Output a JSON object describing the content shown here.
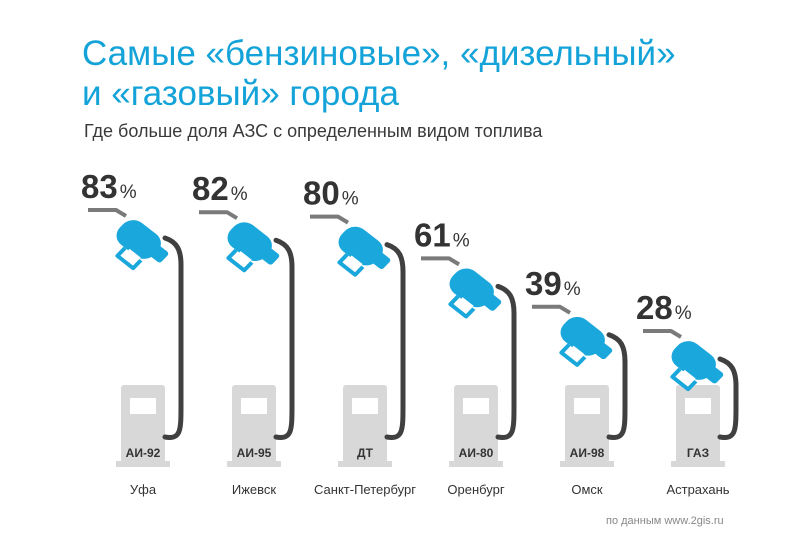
{
  "header": {
    "title_line1": "Самые «бензиновые», «дизельный»",
    "title_line2": "и «газовый» города",
    "subtitle": "Где больше доля АЗС с определенным видом топлива"
  },
  "footer": {
    "source": "по данным www.2gis.ru"
  },
  "colors": {
    "accent": "#14a3d8",
    "nozzle": "#1aa7dc",
    "hose": "#404040",
    "pump": "#d8d8d8",
    "label": "#333333"
  },
  "chart_data": {
    "type": "bar",
    "title": "Самые «бензиновые», «дизельный» и «газовый» города",
    "subtitle": "Где больше доля АЗС с определенным видом топлива",
    "categories": [
      "Уфа",
      "Ижевск",
      "Санкт-Петербург",
      "Оренбург",
      "Омск",
      "Астрахань"
    ],
    "fuel_types": [
      "АИ-92",
      "АИ-95",
      "ДТ",
      "АИ-80",
      "АИ-98",
      "ГАЗ"
    ],
    "values": [
      83,
      82,
      80,
      61,
      39,
      28
    ],
    "unit": "%",
    "ylim": [
      0,
      100
    ]
  }
}
